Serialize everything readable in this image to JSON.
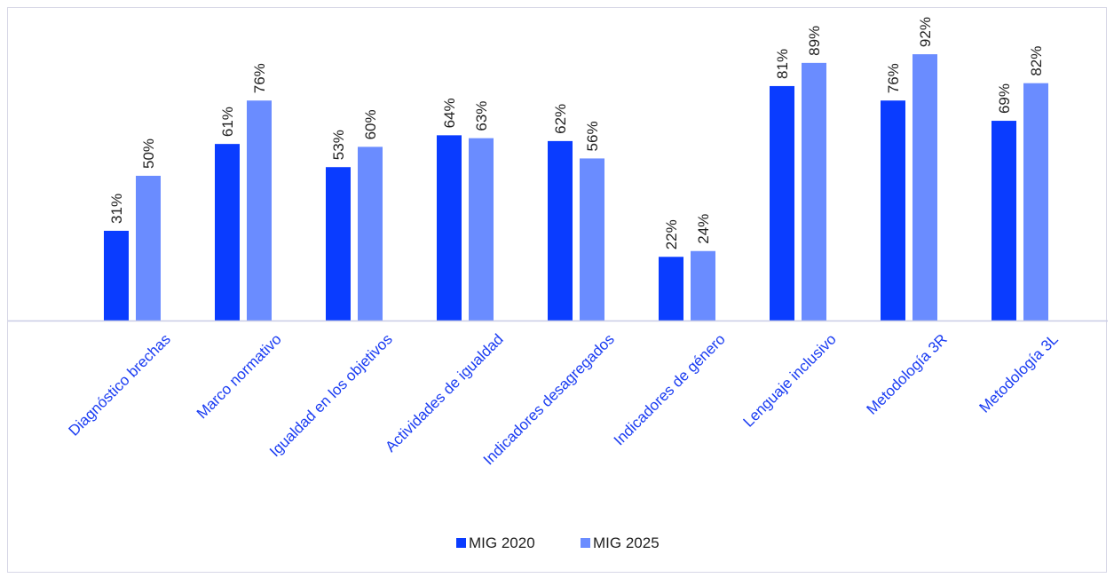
{
  "chart_data": {
    "type": "bar",
    "categories": [
      "Diagnóstico brechas",
      "Marco normativo",
      "Igualdad en los objetivos",
      "Actividades de igualdad",
      "Indicadores desagregados",
      "Indicadores de género",
      "Lenguaje inclusivo",
      "Metodología 3R",
      "Metodología 3L"
    ],
    "series": [
      {
        "name": "MIG 2020",
        "values": [
          31,
          61,
          53,
          64,
          62,
          22,
          81,
          76,
          69
        ],
        "color": "#0a3cff"
      },
      {
        "name": "MIG 2025",
        "values": [
          50,
          76,
          60,
          63,
          56,
          24,
          89,
          92,
          82
        ],
        "color": "#6a8cff"
      }
    ],
    "value_suffix": "%",
    "ylim": [
      0,
      100
    ],
    "grid": false,
    "legend_position": "bottom",
    "axis_color": "#c9cde6",
    "category_label_color": "#1a3cf2"
  }
}
